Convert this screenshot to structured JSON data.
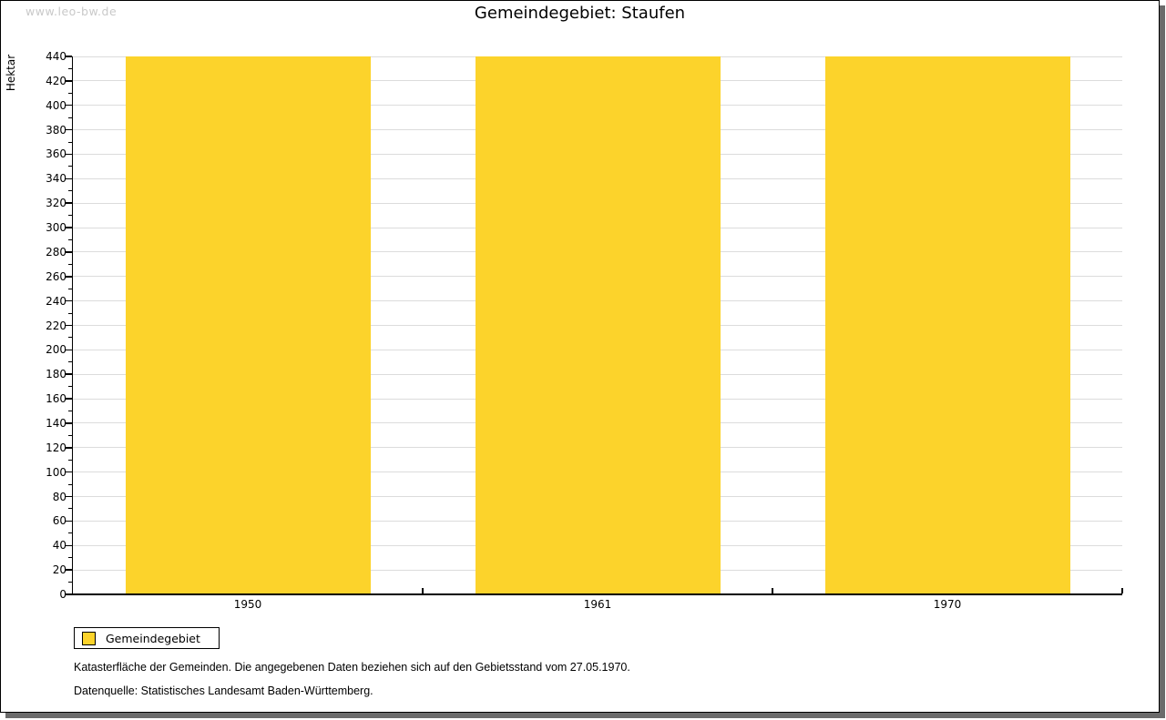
{
  "watermark": "www.leo-bw.de",
  "window": {
    "background": "#ffffff",
    "border_color": "#000000",
    "shadow_color": "#6b6b6b"
  },
  "chart_data": {
    "type": "bar",
    "title": "Gemeindegebiet: Staufen",
    "ylabel": "Hektar",
    "xlabel": "",
    "categories": [
      "1950",
      "1961",
      "1970"
    ],
    "series": [
      {
        "name": "Gemeindegebiet",
        "values": [
          440,
          440,
          440
        ],
        "color": "#fcd32b"
      }
    ],
    "ylim": [
      0,
      440
    ],
    "ytick_step": 20,
    "yminor_step": 10,
    "ytick_labels": [
      "0",
      "20",
      "40",
      "60",
      "80",
      "100",
      "120",
      "140",
      "160",
      "180",
      "200",
      "220",
      "240",
      "260",
      "280",
      "300",
      "320",
      "340",
      "360",
      "380",
      "400",
      "420",
      "440"
    ],
    "grid": "horizontal-major",
    "gridline_color": "#dcdcdc",
    "axis_color": "#000000",
    "legend_position": "bottom-left"
  },
  "legend": {
    "label": "Gemeindegebiet",
    "swatch_color": "#fcd32b"
  },
  "footnotes": [
    "Katasterfläche der Gemeinden. Die angegebenen Daten beziehen sich auf den Gebietsstand vom 27.05.1970.",
    "Datenquelle: Statistisches Landesamt Baden-Württemberg."
  ]
}
